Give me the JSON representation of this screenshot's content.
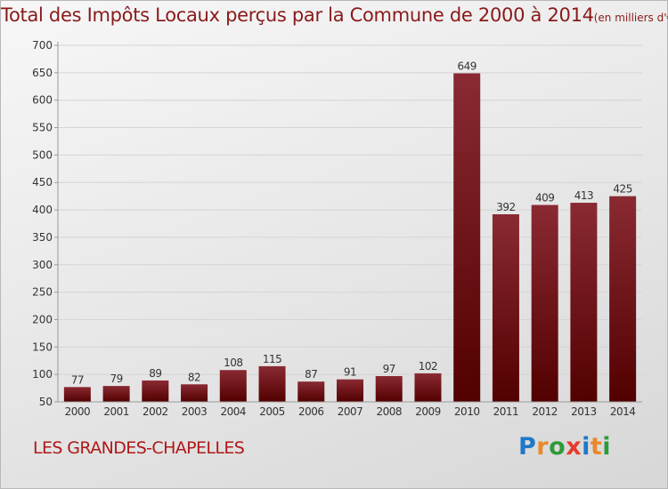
{
  "title": "Total des Impôts Locaux perçus par la Commune de 2000 à 2014",
  "subtitle": "(en milliers d'€)",
  "commune": "LES GRANDES-CHAPELLES",
  "logo": {
    "text": "Proxiti",
    "letter_colors": [
      "#1f78c8",
      "#e8892a",
      "#2f9a3a",
      "#e63b2e",
      "#1f78c8",
      "#e8892a",
      "#2f9a3a"
    ]
  },
  "colors": {
    "bar_light": "#8a2a33",
    "bar_dark": "#520000",
    "grid": "#d4d4d4",
    "axis": "#9a9a9a",
    "text": "#333333"
  },
  "chart_data": {
    "type": "bar",
    "categories": [
      "2000",
      "2001",
      "2002",
      "2003",
      "2004",
      "2005",
      "2006",
      "2007",
      "2008",
      "2009",
      "2010",
      "2011",
      "2012",
      "2013",
      "2014"
    ],
    "values": [
      77,
      79,
      89,
      82,
      108,
      115,
      87,
      91,
      97,
      102,
      649,
      392,
      409,
      413,
      425
    ],
    "ylim": [
      50,
      700
    ],
    "yticks": [
      50,
      100,
      150,
      200,
      250,
      300,
      350,
      400,
      450,
      500,
      550,
      600,
      650,
      700
    ],
    "grid": true,
    "title": "Total des Impôts Locaux perçus par la Commune de 2000 à 2014",
    "xlabel": "",
    "ylabel": ""
  }
}
